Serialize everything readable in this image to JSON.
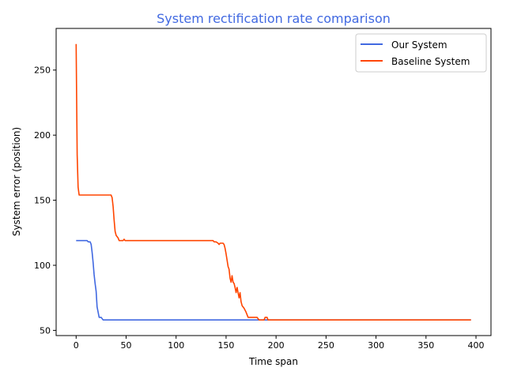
{
  "chart_data": {
    "type": "line",
    "title": "System rectification rate comparison",
    "xlabel": "Time span",
    "ylabel": "System error (position)",
    "xlim": [
      -20,
      415
    ],
    "ylim": [
      46,
      282
    ],
    "xticks": [
      0,
      50,
      100,
      150,
      200,
      250,
      300,
      350,
      400
    ],
    "yticks": [
      50,
      100,
      150,
      200,
      250
    ],
    "grid": false,
    "legend": "top-right",
    "colors": {
      "title": "#4169e1",
      "our": "#4169e1",
      "baseline": "#ff4500"
    },
    "series": [
      {
        "name": "Our System",
        "color": "#4169e1",
        "points": [
          [
            0,
            119
          ],
          [
            11,
            119
          ],
          [
            12,
            118
          ],
          [
            14,
            118
          ],
          [
            15,
            116
          ],
          [
            16,
            110
          ],
          [
            17,
            102
          ],
          [
            18,
            93
          ],
          [
            19,
            86
          ],
          [
            20,
            80
          ],
          [
            21,
            68
          ],
          [
            23,
            60
          ],
          [
            25,
            60
          ],
          [
            27,
            58
          ],
          [
            35,
            58
          ],
          [
            50,
            58
          ],
          [
            100,
            58
          ],
          [
            150,
            58
          ],
          [
            200,
            58
          ],
          [
            250,
            58
          ],
          [
            300,
            58
          ],
          [
            350,
            58
          ],
          [
            395,
            58
          ]
        ]
      },
      {
        "name": "Baseline System",
        "color": "#ff4500",
        "points": [
          [
            0,
            270
          ],
          [
            0.5,
            230
          ],
          [
            1,
            185
          ],
          [
            2,
            160
          ],
          [
            3,
            154
          ],
          [
            10,
            154
          ],
          [
            20,
            154
          ],
          [
            30,
            154
          ],
          [
            35,
            154
          ],
          [
            36,
            152
          ],
          [
            37,
            145
          ],
          [
            38,
            135
          ],
          [
            39,
            126
          ],
          [
            40,
            123
          ],
          [
            42,
            121
          ],
          [
            43,
            119
          ],
          [
            47,
            119
          ],
          [
            48,
            120
          ],
          [
            49,
            119
          ],
          [
            60,
            119
          ],
          [
            80,
            119
          ],
          [
            100,
            119
          ],
          [
            120,
            119
          ],
          [
            137,
            119
          ],
          [
            138,
            118
          ],
          [
            140,
            118
          ],
          [
            142,
            117
          ],
          [
            143,
            116
          ],
          [
            144,
            117
          ],
          [
            147,
            117
          ],
          [
            148,
            116
          ],
          [
            149,
            113
          ],
          [
            150,
            109
          ],
          [
            151,
            104
          ],
          [
            152,
            99
          ],
          [
            153,
            97
          ],
          [
            154,
            90
          ],
          [
            155,
            87
          ],
          [
            156,
            92
          ],
          [
            157,
            87
          ],
          [
            158,
            86
          ],
          [
            159,
            83
          ],
          [
            160,
            79
          ],
          [
            161,
            83
          ],
          [
            162,
            79
          ],
          [
            163,
            75
          ],
          [
            164,
            79
          ],
          [
            165,
            72
          ],
          [
            166,
            69
          ],
          [
            168,
            67
          ],
          [
            170,
            64
          ],
          [
            172,
            60
          ],
          [
            176,
            60
          ],
          [
            180,
            60
          ],
          [
            181,
            60
          ],
          [
            183,
            58
          ],
          [
            188,
            58
          ],
          [
            189,
            60
          ],
          [
            191,
            60
          ],
          [
            192,
            58
          ],
          [
            200,
            58
          ],
          [
            250,
            58
          ],
          [
            300,
            58
          ],
          [
            350,
            58
          ],
          [
            395,
            58
          ]
        ]
      }
    ]
  }
}
